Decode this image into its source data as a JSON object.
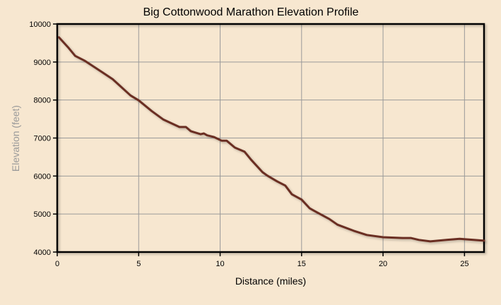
{
  "chart_data": {
    "type": "line",
    "title": "Big Cottonwood Marathon Elevation Profile",
    "xlabel": "Distance (miles)",
    "ylabel": "Elevation (feet)",
    "xlim": [
      0,
      26.2
    ],
    "ylim": [
      4000,
      10000
    ],
    "xticks": [
      0,
      5,
      10,
      15,
      20,
      25
    ],
    "yticks": [
      4000,
      5000,
      6000,
      7000,
      8000,
      9000,
      10000
    ],
    "grid": true,
    "colors": {
      "background": "#f7e7d0",
      "line": "#6b2e22",
      "grid": "#9a9a9a",
      "axis": "#000000"
    },
    "series": [
      {
        "name": "Elevation",
        "x": [
          0.1,
          0.7,
          1.1,
          1.7,
          2.8,
          3.4,
          4.5,
          5.0,
          5.8,
          6.5,
          7.5,
          7.9,
          8.2,
          8.8,
          9.0,
          9.2,
          9.6,
          10.1,
          10.4,
          10.9,
          11.5,
          11.9,
          12.6,
          12.9,
          13.5,
          14.0,
          14.4,
          15.0,
          15.5,
          15.8,
          16.7,
          17.2,
          18.2,
          19.0,
          20.0,
          21.2,
          21.7,
          22.2,
          22.9,
          23.9,
          24.7,
          26.2
        ],
        "y": [
          9650,
          9370,
          9160,
          9030,
          8720,
          8550,
          8120,
          7990,
          7710,
          7490,
          7290,
          7290,
          7180,
          7100,
          7120,
          7070,
          7030,
          6930,
          6930,
          6750,
          6640,
          6430,
          6100,
          6010,
          5860,
          5750,
          5520,
          5380,
          5150,
          5080,
          4870,
          4720,
          4560,
          4450,
          4390,
          4370,
          4370,
          4320,
          4280,
          4320,
          4350,
          4300
        ]
      }
    ]
  }
}
